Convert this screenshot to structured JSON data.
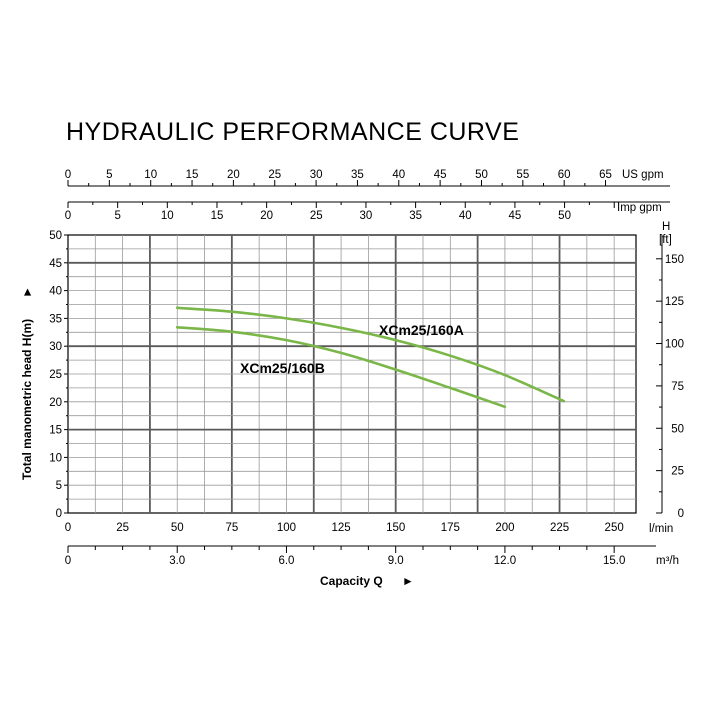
{
  "chart_data": {
    "type": "line",
    "title": "HYDRAULIC PERFORMANCE CURVE",
    "xlabel": "Capacity Q",
    "ylabel": "Total manometric head H(m)",
    "ylim": [
      0,
      50
    ],
    "xlim": [
      0,
      260
    ],
    "x_unit": "l/min",
    "grid": true,
    "axes": {
      "us_gpm": {
        "unit": "US gpm",
        "ticks": [
          "0",
          "5",
          "10",
          "15",
          "20",
          "25",
          "30",
          "35",
          "40",
          "45",
          "50",
          "55",
          "60",
          "65"
        ],
        "values": [
          0,
          5,
          10,
          15,
          20,
          25,
          30,
          35,
          40,
          45,
          50,
          55,
          60,
          65
        ]
      },
      "imp_gpm": {
        "unit": "Imp gpm",
        "ticks": [
          "0",
          "5",
          "10",
          "15",
          "20",
          "25",
          "30",
          "35",
          "40",
          "45",
          "50"
        ],
        "values": [
          0,
          5,
          10,
          15,
          20,
          25,
          30,
          35,
          40,
          45,
          50
        ]
      },
      "lmin": {
        "unit": "l/min",
        "ticks": [
          "0",
          "25",
          "50",
          "75",
          "100",
          "125",
          "150",
          "175",
          "200",
          "225",
          "250"
        ],
        "values": [
          0,
          25,
          50,
          75,
          100,
          125,
          150,
          175,
          200,
          225,
          250
        ]
      },
      "m3h": {
        "unit": "m³/h",
        "ticks": [
          "0",
          "3.0",
          "6.0",
          "9.0",
          "12.0",
          "15.0"
        ],
        "values": [
          0,
          3,
          6,
          9,
          12,
          15
        ]
      },
      "head_m": {
        "ticks": [
          "0",
          "5",
          "10",
          "15",
          "20",
          "25",
          "30",
          "35",
          "40",
          "45",
          "50"
        ],
        "values": [
          0,
          5,
          10,
          15,
          20,
          25,
          30,
          35,
          40,
          45,
          50
        ]
      },
      "head_ft": {
        "unit_top": "H",
        "unit_bottom": "[ft]",
        "ticks": [
          "0",
          "25",
          "50",
          "75",
          "100",
          "125",
          "150"
        ],
        "values": [
          0,
          25,
          50,
          75,
          100,
          125,
          150
        ]
      }
    },
    "series": [
      {
        "name": "XCm25/160A",
        "x": [
          50,
          75,
          100,
          125,
          150,
          175,
          200,
          227
        ],
        "y": [
          36.9,
          36.2,
          35.0,
          33.3,
          31.1,
          28.3,
          24.8,
          20.1
        ]
      },
      {
        "name": "XCm25/160B",
        "x": [
          50,
          75,
          100,
          125,
          150,
          175,
          200
        ],
        "y": [
          33.4,
          32.6,
          31.1,
          28.8,
          25.8,
          22.5,
          19.1
        ]
      }
    ],
    "colors": {
      "curve": "#7ab648",
      "grid_major": "#5a5a5a",
      "grid_minor": "#9a9a9a"
    }
  }
}
